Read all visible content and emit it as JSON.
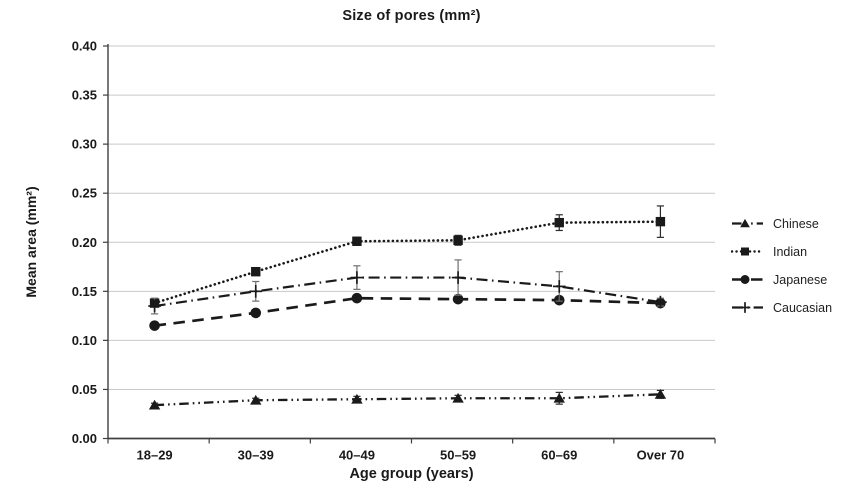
{
  "chart_data": {
    "type": "line",
    "title": "Size of pores (mm²)",
    "xlabel": "Age group (years)",
    "ylabel": "Mean area (mm²)",
    "categories": [
      "18–29",
      "30–39",
      "40–49",
      "50–59",
      "60–69",
      "Over 70"
    ],
    "ylim": [
      0,
      0.4
    ],
    "ytick_step": 0.05,
    "ytick_labels": [
      "0.00",
      "0.05",
      "0.10",
      "0.15",
      "0.20",
      "0.25",
      "0.30",
      "0.35",
      "0.40"
    ],
    "grid": "horizontal",
    "legend_position": "right",
    "series": [
      {
        "name": "Chinese",
        "marker": "triangle",
        "linestyle": "dash-dot-dot",
        "values": [
          0.034,
          0.039,
          0.04,
          0.041,
          0.041,
          0.045
        ],
        "errors": [
          0.002,
          0.002,
          0.003,
          0.003,
          0.006,
          0.004
        ],
        "color": "#1a1a1a",
        "error_color": "#2b2b2b"
      },
      {
        "name": "Indian",
        "marker": "square",
        "linestyle": "dotted",
        "values": [
          0.138,
          0.17,
          0.201,
          0.202,
          0.22,
          0.221
        ],
        "errors": [
          0.003,
          0.003,
          0.004,
          0.005,
          0.008,
          0.016
        ],
        "color": "#1a1a1a",
        "error_color": "#2b2b2b"
      },
      {
        "name": "Japanese",
        "marker": "circle",
        "linestyle": "dashed",
        "values": [
          0.115,
          0.128,
          0.143,
          0.142,
          0.141,
          0.138
        ],
        "errors": [
          0.003,
          0.003,
          0.003,
          0.003,
          0.003,
          0.003
        ],
        "color": "#1a1a1a",
        "error_color": "#2b2b2b"
      },
      {
        "name": "Caucasian",
        "marker": "plus",
        "linestyle": "dash-dot",
        "values": [
          0.135,
          0.15,
          0.164,
          0.164,
          0.155,
          0.139
        ],
        "errors": [
          0.008,
          0.01,
          0.012,
          0.018,
          0.015,
          0.004
        ],
        "color": "#1a1a1a",
        "error_color": "#6e6e6e"
      }
    ],
    "colors": {
      "background": "#ffffff",
      "line": "#1a1a1a",
      "grid": "#c9c9c9",
      "axis": "#404040",
      "text": "#1a1a1a"
    }
  }
}
